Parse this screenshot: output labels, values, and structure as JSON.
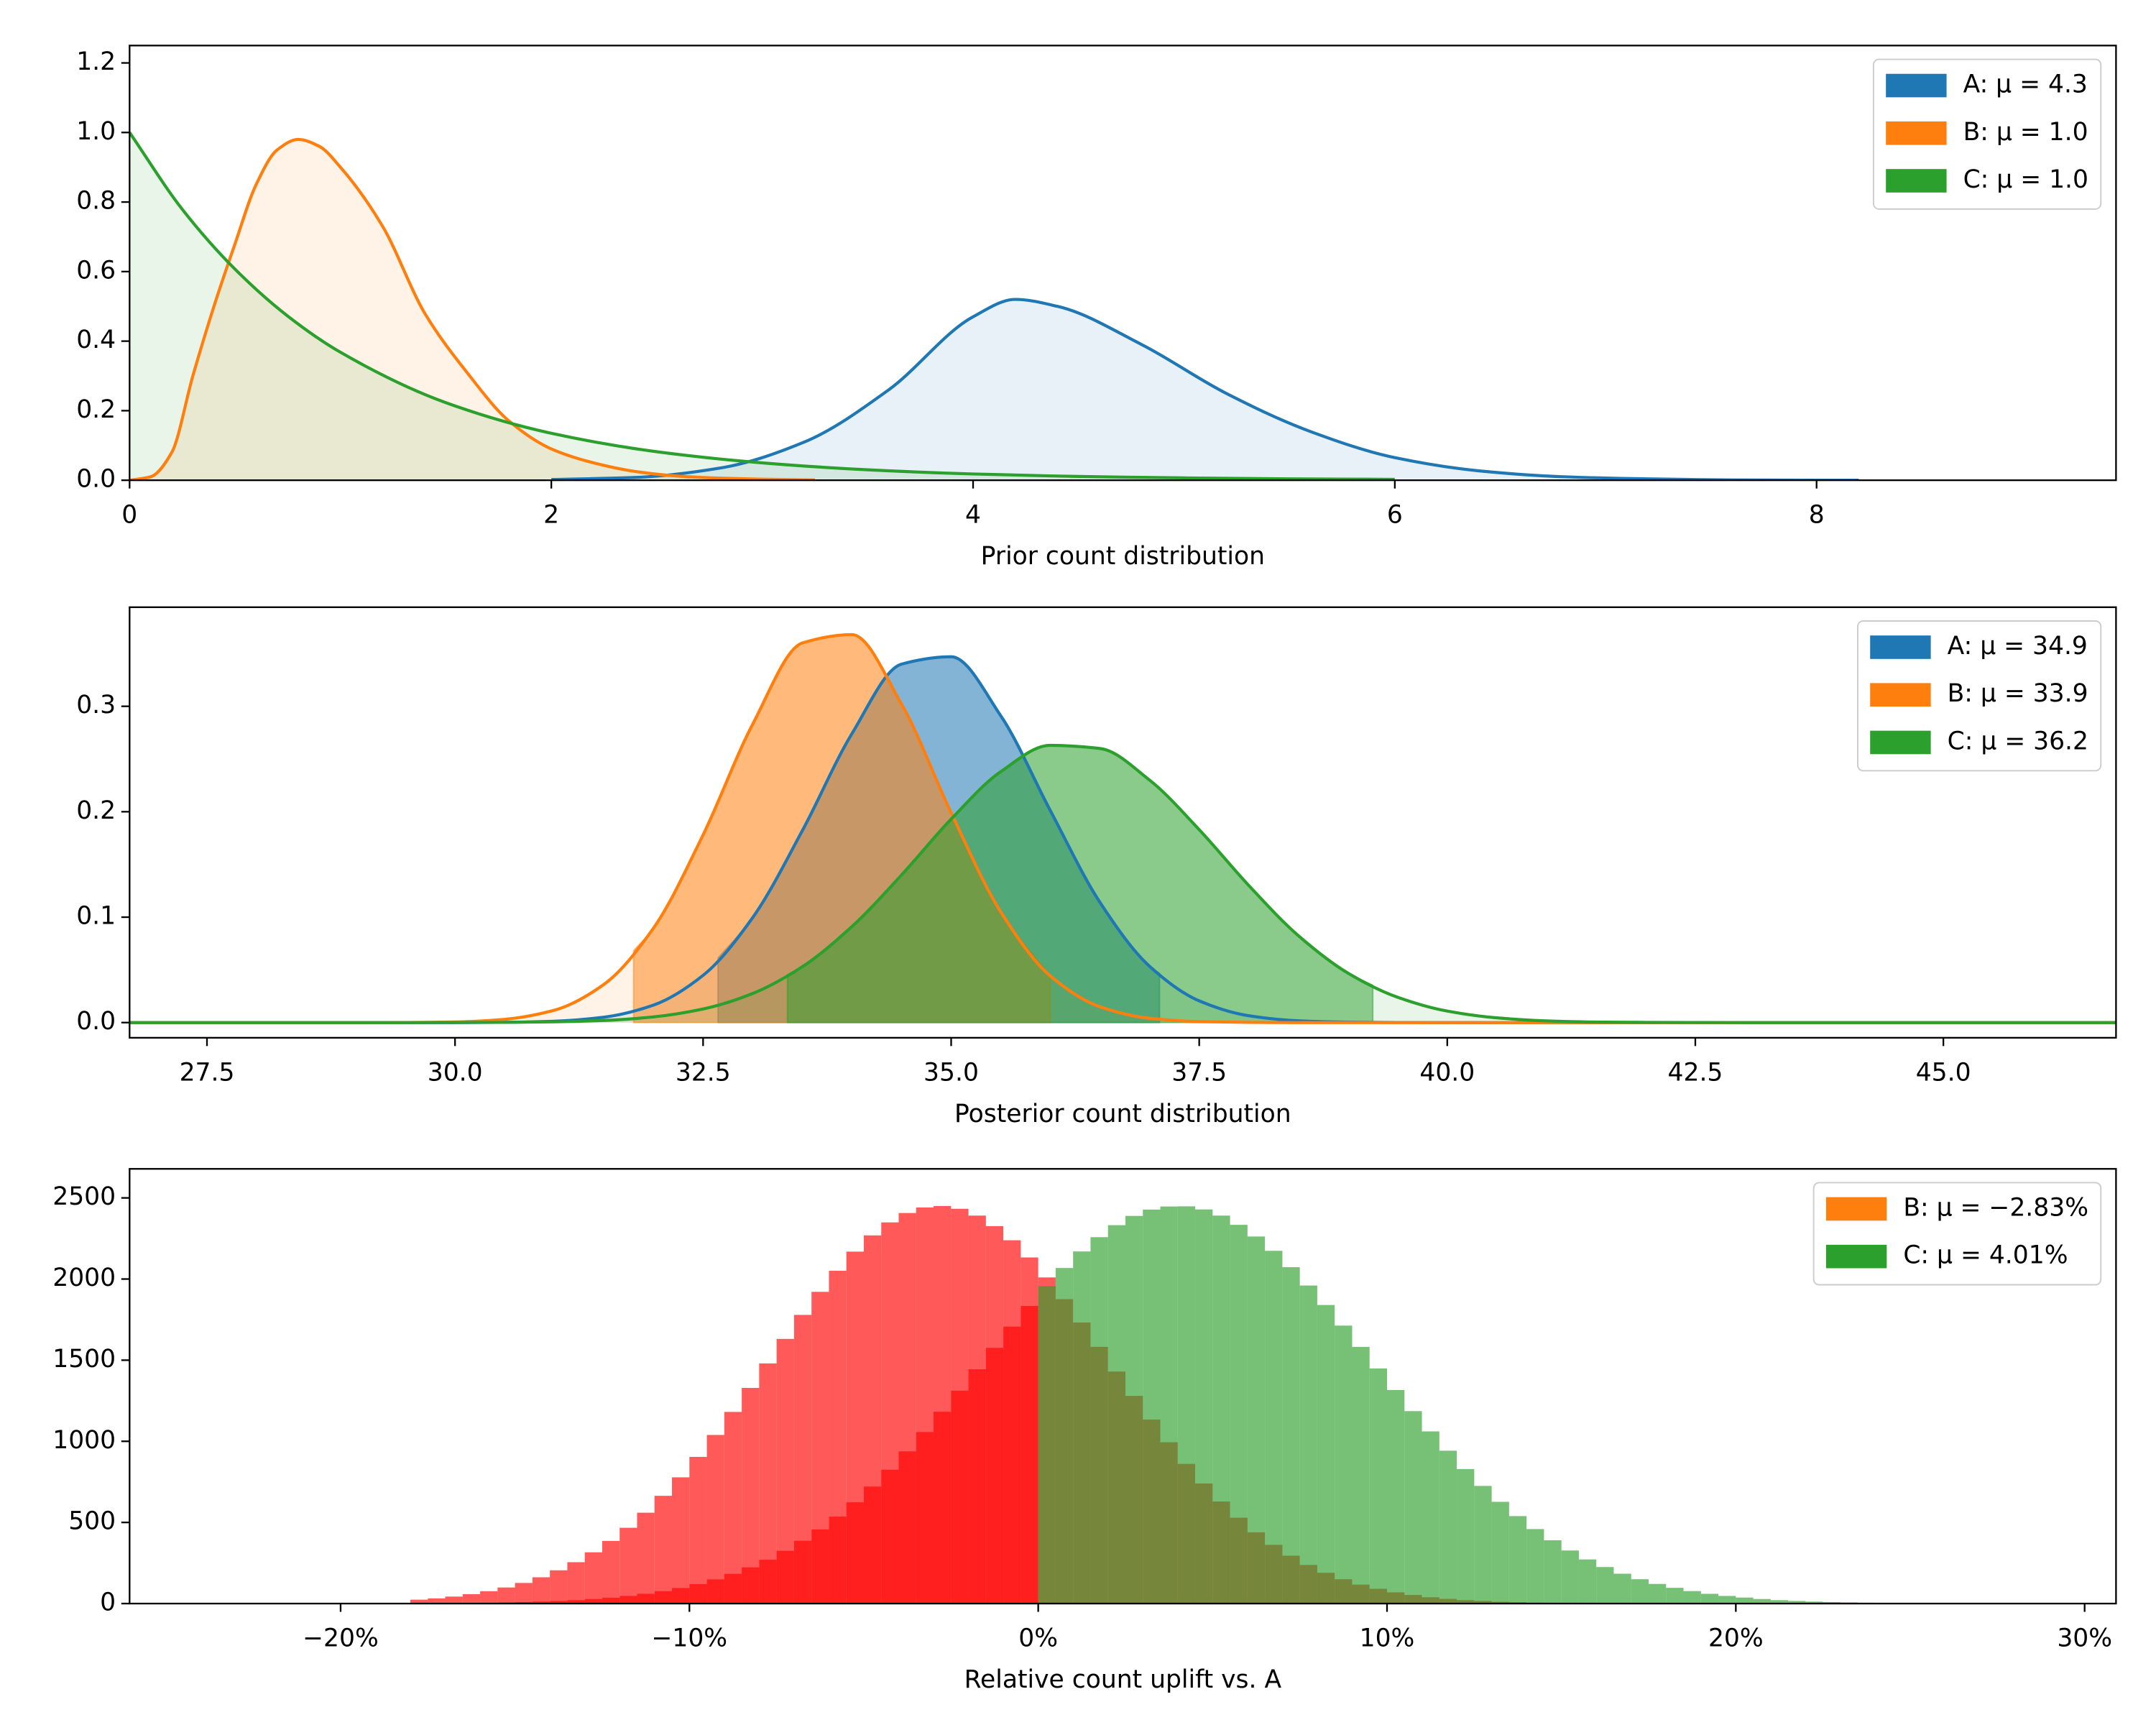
{
  "chart_data": [
    {
      "type": "line",
      "xlabel": "Prior count distribution",
      "xlim": [
        0,
        9.42
      ],
      "ylim": [
        0,
        1.25
      ],
      "xticks": [
        0,
        2,
        4,
        6,
        8
      ],
      "yticks": [
        {
          "value": 0,
          "label": "0.0"
        },
        {
          "value": 0.2,
          "label": "0.2"
        },
        {
          "value": 0.4,
          "label": "0.4"
        },
        {
          "value": 0.6,
          "label": "0.6"
        },
        {
          "value": 0.8,
          "label": "0.8"
        },
        {
          "value": 1.0,
          "label": "1.0"
        },
        {
          "value": 1.2,
          "label": "1.2"
        }
      ],
      "legend": "upper right",
      "fill_alpha": 0.1,
      "series": [
        {
          "name": "A: μ = 4.3",
          "color": "#1f77b4",
          "x": [
            2.0,
            2.4,
            2.8,
            3.2,
            3.6,
            4.0,
            4.2,
            4.4,
            4.8,
            5.2,
            5.6,
            6.0,
            6.4,
            6.8,
            7.2,
            7.6,
            8.2
          ],
          "values": [
            0.002,
            0.008,
            0.035,
            0.11,
            0.26,
            0.47,
            0.52,
            0.5,
            0.39,
            0.25,
            0.14,
            0.065,
            0.027,
            0.01,
            0.004,
            0.001,
            0
          ]
        },
        {
          "name": "B: μ = 1.0",
          "color": "#ff7f0e",
          "x": [
            0,
            0.1,
            0.2,
            0.3,
            0.4,
            0.5,
            0.6,
            0.7,
            0.8,
            0.9,
            1.0,
            1.2,
            1.4,
            1.6,
            1.8,
            2.0,
            2.2,
            2.4,
            2.6,
            2.8,
            3.0,
            3.25
          ],
          "values": [
            0,
            0.01,
            0.08,
            0.3,
            0.5,
            0.68,
            0.85,
            0.95,
            0.98,
            0.96,
            0.9,
            0.73,
            0.48,
            0.31,
            0.17,
            0.09,
            0.05,
            0.025,
            0.012,
            0.006,
            0.003,
            0.001
          ]
        },
        {
          "name": "C: μ = 1.0",
          "color": "#2ca02c",
          "x": [
            0,
            0.25,
            0.5,
            0.75,
            1,
            1.5,
            2,
            2.5,
            3,
            3.5,
            4,
            4.5,
            5,
            5.5,
            6
          ],
          "values": [
            1,
            0.779,
            0.607,
            0.472,
            0.368,
            0.223,
            0.135,
            0.082,
            0.05,
            0.03,
            0.018,
            0.011,
            0.0067,
            0.0041,
            0.0025
          ]
        }
      ]
    },
    {
      "type": "line",
      "xlabel": "Posterior count distribution",
      "xlim": [
        26.72,
        46.74
      ],
      "ylim": [
        -0.0144,
        0.394
      ],
      "xticks": [
        27.5,
        {
          "value": 30,
          "label": "30.0"
        },
        32.5,
        {
          "value": 35,
          "label": "35.0"
        },
        37.5,
        {
          "value": 40,
          "label": "40.0"
        },
        42.5,
        {
          "value": 45,
          "label": "45.0"
        }
      ],
      "yticks": [
        {
          "value": 0,
          "label": "0.0"
        },
        {
          "value": 0.1,
          "label": "0.1"
        },
        {
          "value": 0.2,
          "label": "0.2"
        },
        {
          "value": 0.3,
          "label": "0.3"
        }
      ],
      "legend": "upper right",
      "fill_alpha": 0.1,
      "interval_alpha": 0.5,
      "x": [
        26.72,
        28,
        29,
        29.5,
        30,
        30.5,
        31,
        31.5,
        32,
        32.5,
        33,
        33.5,
        34,
        34.5,
        35,
        35.5,
        36,
        36.5,
        37,
        37.5,
        38,
        38.5,
        39,
        39.5,
        40,
        40.5,
        41,
        41.5,
        42,
        43,
        44,
        46.74
      ],
      "series": [
        {
          "name": "A: μ = 34.9",
          "color": "#1f77b4",
          "interval": [
            32.65,
            37.1
          ],
          "values": [
            0,
            0,
            0,
            0,
            0,
            0.0003,
            0.0013,
            0.0051,
            0.0166,
            0.0448,
            0.0996,
            0.182,
            0.274,
            0.34,
            0.347,
            0.291,
            0.201,
            0.114,
            0.0534,
            0.0206,
            0.0065,
            0.0017,
            0.0004,
            0.0001,
            0,
            0,
            0,
            0,
            0,
            0,
            0,
            0
          ]
        },
        {
          "name": "B: μ = 33.9",
          "color": "#ff7f0e",
          "interval": [
            31.8,
            36.0
          ],
          "values": [
            0,
            0,
            0,
            0.0001,
            0.0006,
            0.0031,
            0.0117,
            0.0362,
            0.0896,
            0.178,
            0.283,
            0.36,
            0.368,
            0.302,
            0.199,
            0.105,
            0.0442,
            0.015,
            0.0041,
            0.0009,
            0.0002,
            0,
            0,
            0,
            0,
            0,
            0,
            0,
            0,
            0,
            0,
            0
          ]
        },
        {
          "name": "C: μ = 36.2",
          "color": "#2ca02c",
          "interval": [
            33.35,
            39.25
          ],
          "values": [
            0,
            0,
            0,
            0,
            0.0001,
            0.0002,
            0.0007,
            0.002,
            0.0054,
            0.0129,
            0.0276,
            0.053,
            0.0911,
            0.14,
            0.193,
            0.238,
            0.263,
            0.26,
            0.23,
            0.183,
            0.13,
            0.0824,
            0.0469,
            0.024,
            0.0109,
            0.0045,
            0.0016,
            0.0005,
            0.0002,
            0,
            0,
            0
          ]
        }
      ]
    },
    {
      "type": "histogram",
      "xlabel": "Relative count uplift vs. A",
      "xlim": [
        -26.05,
        30.9
      ],
      "ylim": [
        0,
        2679
      ],
      "xticks": [
        {
          "value": -20,
          "label": "−20%"
        },
        {
          "value": -10,
          "label": "−10%"
        },
        {
          "value": 0,
          "label": "0%"
        },
        {
          "value": 10,
          "label": "10%"
        },
        {
          "value": 20,
          "label": "20%"
        },
        {
          "value": 30,
          "label": "30%"
        }
      ],
      "yticks": [
        0,
        500,
        1000,
        1500,
        2000,
        2500
      ],
      "legend": "upper right",
      "alpha": 0.65,
      "bins": [
        -18,
        -17.5,
        -17,
        -16.5,
        -16,
        -15.5,
        -15,
        -14.5,
        -14,
        -13.5,
        -13,
        -12.5,
        -12,
        -11.5,
        -11,
        -10.5,
        -10,
        -9.5,
        -9,
        -8.5,
        -8,
        -7.5,
        -7,
        -6.5,
        -6,
        -5.5,
        -5,
        -4.5,
        -4,
        -3.5,
        -3,
        -2.5,
        -2,
        -1.5,
        -1,
        -0.5,
        0,
        0.5,
        1,
        1.5,
        2,
        2.5,
        3,
        3.5,
        4,
        4.5,
        5,
        5.5,
        6,
        6.5,
        7,
        7.5,
        8,
        8.5,
        9,
        9.5,
        10,
        10.5,
        11,
        11.5,
        12,
        12.5,
        13,
        13.5,
        14,
        14.5,
        15,
        15.5,
        16,
        16.5,
        17,
        17.5,
        18,
        18.5,
        19,
        19.5,
        20,
        20.5,
        21,
        21.5,
        22,
        22.5,
        23,
        23.5,
        24
      ],
      "series": [
        {
          "name": "B: μ = −2.83%",
          "color": "#ff7f0e",
          "neg_color": "#ff0000",
          "pos_color": "#ff0000",
          "values": [
            24,
            32,
            43,
            58,
            76,
            99,
            127,
            162,
            205,
            255,
            316,
            386,
            467,
            560,
            664,
            778,
            904,
            1039,
            1181,
            1329,
            1480,
            1631,
            1779,
            1921,
            2051,
            2169,
            2269,
            2349,
            2407,
            2441,
            2450,
            2433,
            2391,
            2326,
            2239,
            2133,
            2010,
            1876,
            1732,
            1582,
            1430,
            1280,
            1134,
            994,
            861,
            740,
            629,
            529,
            439,
            362,
            295,
            238,
            190,
            150,
            117,
            91,
            69,
            53,
            39,
            29,
            21,
            16,
            11,
            8,
            5,
            4,
            3,
            2,
            1,
            1,
            1,
            0,
            0,
            0,
            0,
            0,
            0,
            0,
            0,
            0,
            0,
            0,
            0,
            0
          ]
        },
        {
          "name": "C: μ = 4.01%",
          "color": "#2ca02c",
          "neg_color": "#ff0000",
          "pos_color": "#2ca02c",
          "values": [
            1,
            2,
            3,
            4,
            5,
            7,
            9,
            12,
            16,
            21,
            28,
            36,
            47,
            60,
            76,
            96,
            120,
            149,
            183,
            223,
            270,
            325,
            387,
            457,
            536,
            624,
            721,
            825,
            938,
            1057,
            1182,
            1312,
            1444,
            1576,
            1707,
            1834,
            1956,
            2068,
            2170,
            2258,
            2332,
            2389,
            2428,
            2447,
            2448,
            2429,
            2391,
            2334,
            2262,
            2174,
            2073,
            1960,
            1840,
            1713,
            1582,
            1449,
            1316,
            1186,
            1061,
            942,
            829,
            725,
            627,
            539,
            459,
            390,
            327,
            272,
            225,
            184,
            150,
            121,
            97,
            77,
            60,
            47,
            37,
            28,
            21,
            16,
            12,
            9,
            7,
            5
          ]
        }
      ]
    }
  ]
}
